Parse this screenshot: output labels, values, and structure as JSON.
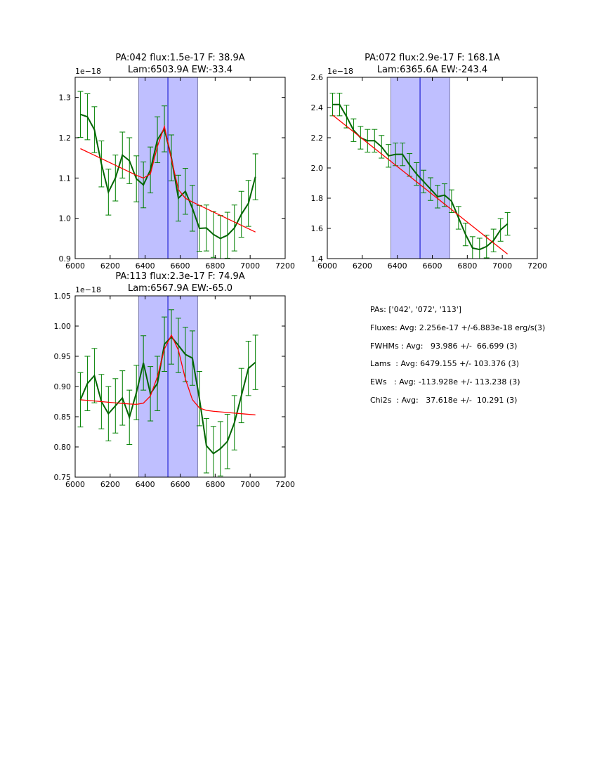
{
  "chart_data": [
    {
      "type": "line",
      "title_line1": "PA:042 flux:1.5e-17 F: 38.9A",
      "title_line2": "Lam:6503.9A EW:-33.4",
      "exponent_label": "1e−18",
      "xlim": [
        6000,
        7200
      ],
      "ylim": [
        0.9,
        1.35
      ],
      "xticks": [
        6000,
        6200,
        6400,
        6600,
        6800,
        7000,
        7200
      ],
      "yticks": [
        0.9,
        1.0,
        1.1,
        1.2,
        1.3
      ],
      "ytick_decimals": 1,
      "shaded_span": [
        6363,
        6700
      ],
      "vline": 6530,
      "x": [
        6030,
        6070,
        6110,
        6150,
        6190,
        6230,
        6270,
        6310,
        6350,
        6390,
        6430,
        6470,
        6510,
        6550,
        6590,
        6630,
        6670,
        6710,
        6750,
        6790,
        6830,
        6870,
        6910,
        6950,
        6990,
        7030
      ],
      "series": [
        {
          "name": "data",
          "color": "#006400",
          "values": [
            1.258,
            1.252,
            1.22,
            1.135,
            1.065,
            1.1,
            1.157,
            1.143,
            1.098,
            1.083,
            1.12,
            1.195,
            1.222,
            1.15,
            1.05,
            1.067,
            1.025,
            0.975,
            0.976,
            0.96,
            0.95,
            0.958,
            0.976,
            1.01,
            1.037,
            1.103
          ],
          "error": 0.057
        },
        {
          "name": "fit",
          "color": "#ff0000",
          "continuum": [
            1.173,
            0.966
          ],
          "amplitude": 0.155,
          "center": 6507,
          "sigma": 38
        }
      ]
    },
    {
      "type": "line",
      "title_line1": "PA:072 flux:2.9e-17 F: 168.1A",
      "title_line2": "Lam:6365.6A EW:-243.4",
      "exponent_label": "1e−18",
      "xlim": [
        6000,
        7200
      ],
      "ylim": [
        1.4,
        2.6
      ],
      "xticks": [
        6000,
        6200,
        6400,
        6600,
        6800,
        7000,
        7200
      ],
      "yticks": [
        1.4,
        1.6,
        1.8,
        2.0,
        2.2,
        2.4,
        2.6
      ],
      "ytick_decimals": 1,
      "shaded_span": [
        6363,
        6700
      ],
      "vline": 6530,
      "x": [
        6030,
        6070,
        6110,
        6150,
        6190,
        6230,
        6270,
        6310,
        6350,
        6390,
        6430,
        6470,
        6510,
        6550,
        6590,
        6630,
        6670,
        6710,
        6750,
        6790,
        6830,
        6870,
        6910,
        6950,
        6990,
        7030
      ],
      "series": [
        {
          "name": "data",
          "color": "#006400",
          "values": [
            2.42,
            2.42,
            2.34,
            2.25,
            2.2,
            2.18,
            2.18,
            2.14,
            2.08,
            2.09,
            2.09,
            2.02,
            1.96,
            1.91,
            1.86,
            1.81,
            1.82,
            1.78,
            1.67,
            1.56,
            1.47,
            1.46,
            1.48,
            1.52,
            1.59,
            1.63
          ],
          "error": 0.075
        },
        {
          "name": "fit",
          "color": "#ff0000",
          "continuum": [
            2.35,
            1.43
          ],
          "amplitude": 0.0,
          "center": 6365.6,
          "sigma": 70
        }
      ]
    },
    {
      "type": "line",
      "title_line1": "PA:113 flux:2.3e-17 F: 74.9A",
      "title_line2": "Lam:6567.9A EW:-65.0",
      "exponent_label": "1e−18",
      "xlim": [
        6000,
        7200
      ],
      "ylim": [
        0.75,
        1.05
      ],
      "xticks": [
        6000,
        6200,
        6400,
        6600,
        6800,
        7000,
        7200
      ],
      "yticks": [
        0.75,
        0.8,
        0.85,
        0.9,
        0.95,
        1.0,
        1.05
      ],
      "ytick_decimals": 2,
      "shaded_span": [
        6363,
        6700
      ],
      "vline": 6530,
      "x": [
        6030,
        6070,
        6110,
        6150,
        6190,
        6230,
        6270,
        6310,
        6350,
        6390,
        6430,
        6470,
        6510,
        6550,
        6590,
        6630,
        6670,
        6710,
        6750,
        6790,
        6830,
        6870,
        6910,
        6950,
        6990,
        7030
      ],
      "series": [
        {
          "name": "data",
          "color": "#006400",
          "values": [
            0.878,
            0.905,
            0.918,
            0.875,
            0.855,
            0.868,
            0.881,
            0.849,
            0.89,
            0.939,
            0.888,
            0.905,
            0.97,
            0.982,
            0.968,
            0.953,
            0.947,
            0.88,
            0.802,
            0.789,
            0.797,
            0.809,
            0.84,
            0.885,
            0.93,
            0.94
          ],
          "error": 0.045
        },
        {
          "name": "fit",
          "color": "#ff0000",
          "continuum": [
            0.878,
            0.853
          ],
          "amplitude": 0.12,
          "center": 6550,
          "sigma": 60
        }
      ]
    }
  ],
  "summary": [
    "PAs: ['042', '072', '113']",
    "Fluxes: Avg: 2.256e-17 +/-6.883e-18 erg/s(3)",
    "FWHMs : Avg:   93.986 +/-  66.699 (3)",
    "Lams  : Avg: 6479.155 +/- 103.376 (3)",
    "EWs   : Avg: -113.928e +/- 113.238 (3)",
    "Chi2s  : Avg:   37.618e +/-  10.291 (3)"
  ]
}
